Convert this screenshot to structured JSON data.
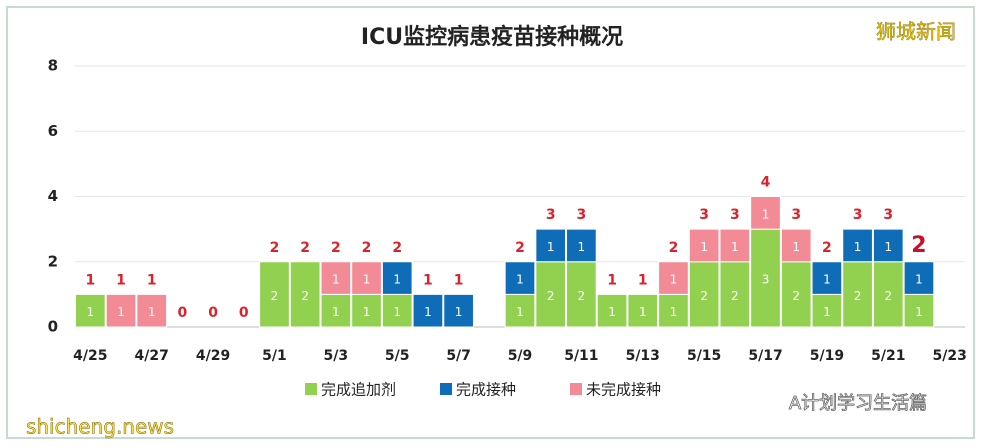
{
  "chart_data": {
    "type": "stacked-bar",
    "title": "ICU监控病患疫苗接种概况",
    "categories": [
      "4/25",
      null,
      "4/27",
      null,
      "4/29",
      null,
      "5/1",
      null,
      "5/3",
      null,
      "5/5",
      null,
      "5/7",
      null,
      "5/9",
      null,
      "5/11",
      null,
      "5/13",
      null,
      "5/15",
      null,
      "5/17",
      null,
      "5/19",
      null,
      "5/21",
      null,
      "5/23"
    ],
    "series": [
      {
        "name": "完成追加剂",
        "color": "#92d050",
        "values": [
          1,
          0,
          0,
          0,
          0,
          0,
          2,
          2,
          1,
          1,
          1,
          0,
          0,
          null,
          1,
          2,
          2,
          1,
          1,
          1,
          2,
          2,
          3,
          2,
          1,
          2,
          2,
          1,
          null
        ]
      },
      {
        "name": "完成接种",
        "color": "#0f6cb6",
        "values": [
          0,
          0,
          0,
          0,
          0,
          0,
          0,
          0,
          0,
          0,
          1,
          1,
          1,
          null,
          1,
          1,
          1,
          0,
          0,
          0,
          0,
          0,
          0,
          0,
          1,
          1,
          1,
          1,
          null
        ]
      },
      {
        "name": "未完成接种",
        "color": "#f28b95",
        "values": [
          0,
          1,
          1,
          0,
          0,
          0,
          0,
          0,
          1,
          1,
          0,
          0,
          0,
          null,
          0,
          0,
          0,
          0,
          0,
          1,
          1,
          1,
          1,
          1,
          0,
          0,
          0,
          0,
          null
        ]
      }
    ],
    "totals": [
      1,
      1,
      1,
      0,
      0,
      0,
      2,
      2,
      2,
      2,
      2,
      1,
      1,
      null,
      2,
      3,
      3,
      1,
      1,
      2,
      3,
      3,
      4,
      3,
      2,
      3,
      3,
      2,
      null
    ],
    "ylim": [
      0,
      8
    ],
    "yticks": [
      0,
      2,
      4,
      6,
      8
    ],
    "grid": true,
    "watermarks": [
      "狮城新闻",
      "A计划学习生活篇",
      "shicheng.news"
    ]
  }
}
